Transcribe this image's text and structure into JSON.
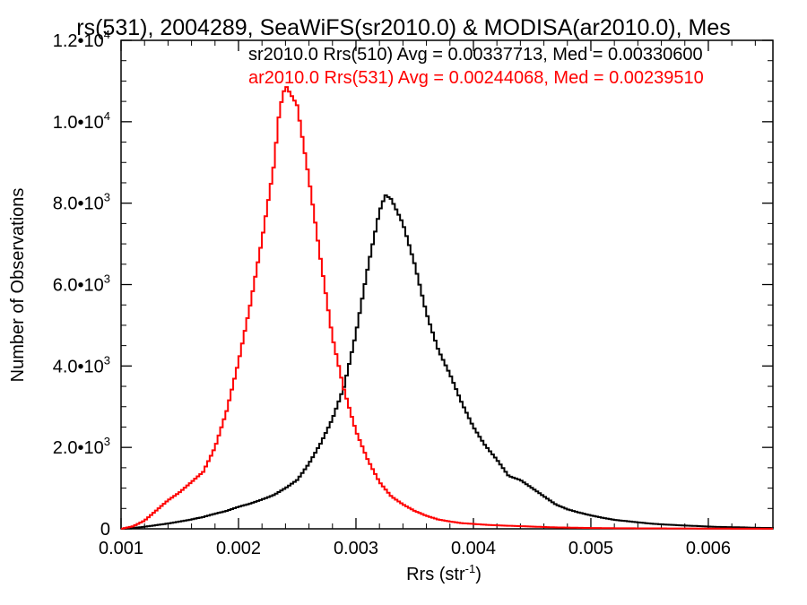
{
  "chart_data": {
    "type": "line",
    "title": "rs(531), 2004289, SeaWiFS(sr2010.0) & MODISA(ar2010.0), Mes",
    "xlabel": "Rrs (str",
    "xlabel_sup": "-1",
    "xlabel_close": ")",
    "ylabel": "Number of Observations",
    "xlim": [
      0.001,
      0.00655
    ],
    "ylim": [
      0,
      12000
    ],
    "x_ticks": [
      {
        "v": 0.001,
        "label": "0.001"
      },
      {
        "v": 0.002,
        "label": "0.002"
      },
      {
        "v": 0.003,
        "label": "0.003"
      },
      {
        "v": 0.004,
        "label": "0.004"
      },
      {
        "v": 0.005,
        "label": "0.005"
      },
      {
        "v": 0.006,
        "label": "0.006"
      }
    ],
    "y_ticks": [
      {
        "v": 0,
        "mant": "0",
        "exp": ""
      },
      {
        "v": 2000,
        "mant": "2.0•10",
        "exp": "3"
      },
      {
        "v": 4000,
        "mant": "4.0•10",
        "exp": "3"
      },
      {
        "v": 6000,
        "mant": "6.0•10",
        "exp": "3"
      },
      {
        "v": 8000,
        "mant": "8.0•10",
        "exp": "3"
      },
      {
        "v": 10000,
        "mant": "1.0•10",
        "exp": "4"
      },
      {
        "v": 12000,
        "mant": "1.2•10",
        "exp": "4"
      }
    ],
    "grid": false,
    "legend_position": "top-right",
    "series": [
      {
        "name": "sr2010.0 Rrs(510) Avg = 0.00337713, Med = 0.00330600",
        "color": "#000000",
        "points": [
          [
            0.001,
            0
          ],
          [
            0.0011,
            20
          ],
          [
            0.0012,
            50
          ],
          [
            0.0013,
            90
          ],
          [
            0.0014,
            130
          ],
          [
            0.0015,
            180
          ],
          [
            0.0016,
            230
          ],
          [
            0.0017,
            290
          ],
          [
            0.0018,
            370
          ],
          [
            0.0019,
            440
          ],
          [
            0.002,
            540
          ],
          [
            0.0021,
            620
          ],
          [
            0.0022,
            720
          ],
          [
            0.0023,
            830
          ],
          [
            0.0024,
            1000
          ],
          [
            0.0025,
            1200
          ],
          [
            0.0026,
            1600
          ],
          [
            0.0027,
            2100
          ],
          [
            0.0028,
            2700
          ],
          [
            0.0029,
            3500
          ],
          [
            0.003,
            4800
          ],
          [
            0.0031,
            6400
          ],
          [
            0.0032,
            7800
          ],
          [
            0.00325,
            8200
          ],
          [
            0.0033,
            8100
          ],
          [
            0.0034,
            7500
          ],
          [
            0.0035,
            6500
          ],
          [
            0.0036,
            5300
          ],
          [
            0.0037,
            4400
          ],
          [
            0.0038,
            3800
          ],
          [
            0.0039,
            3100
          ],
          [
            0.004,
            2500
          ],
          [
            0.0041,
            2050
          ],
          [
            0.0042,
            1700
          ],
          [
            0.0043,
            1300
          ],
          [
            0.0044,
            1200
          ],
          [
            0.0045,
            1000
          ],
          [
            0.0046,
            800
          ],
          [
            0.0047,
            600
          ],
          [
            0.0048,
            480
          ],
          [
            0.0049,
            400
          ],
          [
            0.005,
            330
          ],
          [
            0.0051,
            270
          ],
          [
            0.0052,
            220
          ],
          [
            0.0053,
            190
          ],
          [
            0.0054,
            160
          ],
          [
            0.0055,
            130
          ],
          [
            0.0056,
            110
          ],
          [
            0.0057,
            95
          ],
          [
            0.0058,
            80
          ],
          [
            0.0059,
            70
          ],
          [
            0.006,
            55
          ],
          [
            0.0061,
            45
          ],
          [
            0.0062,
            40
          ],
          [
            0.0063,
            35
          ],
          [
            0.0064,
            25
          ],
          [
            0.00655,
            20
          ]
        ]
      },
      {
        "name": "ar2010.0 Rrs(531) Avg = 0.00244068, Med = 0.00239510",
        "color": "#ff0000",
        "points": [
          [
            0.001,
            0
          ],
          [
            0.0011,
            60
          ],
          [
            0.0012,
            200
          ],
          [
            0.0013,
            450
          ],
          [
            0.0014,
            700
          ],
          [
            0.0015,
            900
          ],
          [
            0.0016,
            1150
          ],
          [
            0.0017,
            1400
          ],
          [
            0.0018,
            2000
          ],
          [
            0.0019,
            2900
          ],
          [
            0.002,
            4100
          ],
          [
            0.0021,
            5500
          ],
          [
            0.0022,
            7100
          ],
          [
            0.0023,
            8900
          ],
          [
            0.00235,
            10300
          ],
          [
            0.0024,
            10900
          ],
          [
            0.0025,
            10400
          ],
          [
            0.0026,
            8600
          ],
          [
            0.0027,
            6600
          ],
          [
            0.0028,
            4700
          ],
          [
            0.0029,
            3400
          ],
          [
            0.003,
            2400
          ],
          [
            0.0031,
            1700
          ],
          [
            0.0032,
            1150
          ],
          [
            0.0033,
            800
          ],
          [
            0.0034,
            600
          ],
          [
            0.0035,
            440
          ],
          [
            0.0036,
            320
          ],
          [
            0.0037,
            230
          ],
          [
            0.0038,
            180
          ],
          [
            0.0039,
            140
          ],
          [
            0.004,
            120
          ],
          [
            0.0041,
            100
          ],
          [
            0.0042,
            85
          ],
          [
            0.0043,
            75
          ],
          [
            0.0044,
            65
          ],
          [
            0.0045,
            55
          ],
          [
            0.0046,
            45
          ],
          [
            0.0047,
            35
          ],
          [
            0.0048,
            30
          ],
          [
            0.0049,
            25
          ],
          [
            0.005,
            20
          ],
          [
            0.0052,
            15
          ],
          [
            0.0054,
            12
          ],
          [
            0.0056,
            10
          ],
          [
            0.0058,
            8
          ],
          [
            0.006,
            6
          ],
          [
            0.0062,
            4
          ],
          [
            0.00655,
            2
          ]
        ]
      }
    ]
  }
}
